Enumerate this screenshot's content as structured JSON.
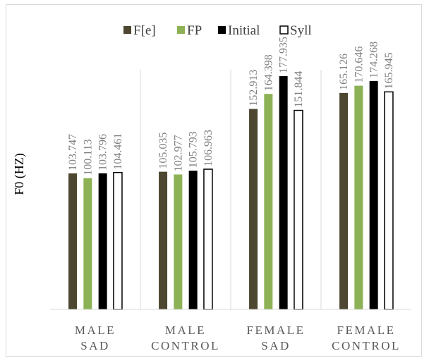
{
  "chart_data": {
    "type": "bar",
    "title": "",
    "ylabel": "F0 (HZ)",
    "xlabel": "",
    "ylim": [
      0,
      200
    ],
    "grid": "vertical category separators",
    "legend_position": "top",
    "categories": [
      [
        "MALE",
        "SAD"
      ],
      [
        "MALE",
        "CONTROL"
      ],
      [
        "FEMALE",
        "SAD"
      ],
      [
        "FEMALE",
        "CONTROL"
      ]
    ],
    "series": [
      {
        "name": "F[e]",
        "color": "#4d4731",
        "values": [
          103.747,
          105.035,
          152.913,
          165.126
        ],
        "labels": [
          "103.747",
          "105.035",
          "152.913",
          "165.126"
        ]
      },
      {
        "name": "FP",
        "color": "#8db255",
        "values": [
          100.113,
          102.977,
          164.398,
          170.646
        ],
        "labels": [
          "100.113",
          "102.977",
          "164.398",
          "170.646"
        ]
      },
      {
        "name": "Initial",
        "color": "#000000",
        "values": [
          103.796,
          105.793,
          177.935,
          174.268
        ],
        "labels": [
          "103.796",
          "105.793",
          "177.935",
          "174.268"
        ]
      },
      {
        "name": "Syll",
        "color": "#ffffff",
        "stroke": "#000000",
        "values": [
          104.461,
          106.963,
          151.844,
          165.945
        ],
        "labels": [
          "104.461",
          "106.963",
          "151.844",
          "165.945"
        ]
      }
    ]
  }
}
